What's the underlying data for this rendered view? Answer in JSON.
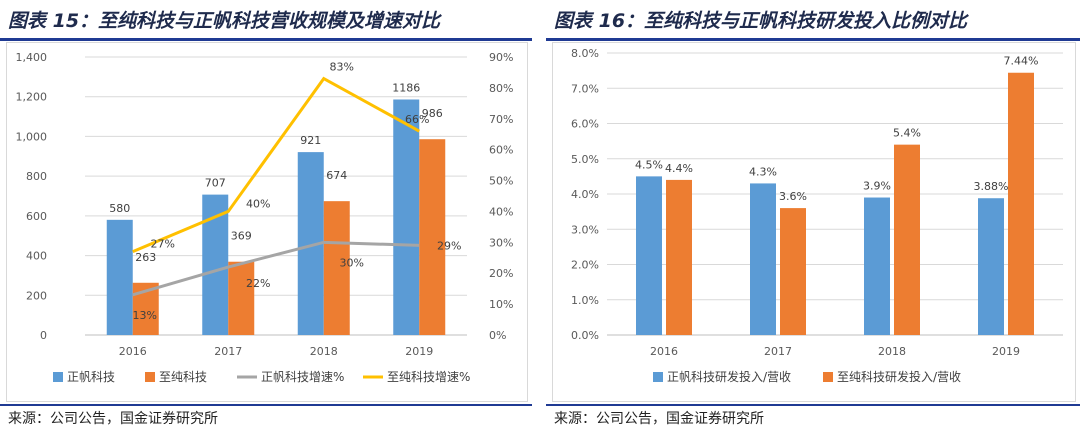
{
  "figures": [
    {
      "title": "图表 15：至纯科技与正帆科技营收规模及增速对比",
      "source": "来源：公司公告，国金证券研究所"
    },
    {
      "title": "图表 16：至纯科技与正帆科技研发投入比例对比",
      "source": "来源：公司公告，国金证券研究所"
    }
  ],
  "chart_data": [
    {
      "type": "bar",
      "categories": [
        "2016",
        "2017",
        "2018",
        "2019"
      ],
      "ylim": [
        0,
        1400
      ],
      "y_ticks": [
        "0",
        "200",
        "400",
        "600",
        "800",
        "1,000",
        "1,200",
        "1,400"
      ],
      "y2lim": [
        0,
        90
      ],
      "y2_ticks": [
        "0%",
        "10%",
        "20%",
        "30%",
        "40%",
        "50%",
        "60%",
        "70%",
        "80%",
        "90%"
      ],
      "grid": true,
      "legend_position": "bottom",
      "series": [
        {
          "name": "正帆科技",
          "kind": "bar",
          "axis": "left",
          "color": "#5b9bd5",
          "values": [
            580,
            707,
            921,
            1186
          ],
          "labels": [
            "580",
            "707",
            "921",
            "1186"
          ]
        },
        {
          "name": "至纯科技",
          "kind": "bar",
          "axis": "left",
          "color": "#ed7d31",
          "values": [
            263,
            369,
            674,
            986
          ],
          "labels": [
            "263",
            "369",
            "674",
            "986"
          ]
        },
        {
          "name": "正帆科技增速%",
          "kind": "line",
          "axis": "right",
          "color": "#a5a5a5",
          "values": [
            13,
            22,
            30,
            29
          ],
          "labels": [
            "13%",
            "22%",
            "30%",
            "29%"
          ]
        },
        {
          "name": "至纯科技增速%",
          "kind": "line",
          "axis": "right",
          "color": "#ffc000",
          "values": [
            27,
            40,
            83,
            66
          ],
          "labels": [
            "27%",
            "40%",
            "83%",
            "66%"
          ]
        }
      ]
    },
    {
      "type": "bar",
      "categories": [
        "2016",
        "2017",
        "2018",
        "2019"
      ],
      "ylim": [
        0,
        8
      ],
      "y_ticks": [
        "0.0%",
        "1.0%",
        "2.0%",
        "3.0%",
        "4.0%",
        "5.0%",
        "6.0%",
        "7.0%",
        "8.0%"
      ],
      "grid": true,
      "legend_position": "bottom",
      "series": [
        {
          "name": "正帆科技研发投入/营收",
          "color": "#5b9bd5",
          "values": [
            4.5,
            4.3,
            3.9,
            3.88
          ],
          "labels": [
            "4.5%",
            "4.3%",
            "3.9%",
            "3.88%"
          ]
        },
        {
          "name": "至纯科技研发投入/营收",
          "color": "#ed7d31",
          "values": [
            4.4,
            3.6,
            5.4,
            7.44
          ],
          "labels": [
            "4.4%",
            "3.6%",
            "5.4%",
            "7.44%"
          ]
        }
      ]
    }
  ]
}
